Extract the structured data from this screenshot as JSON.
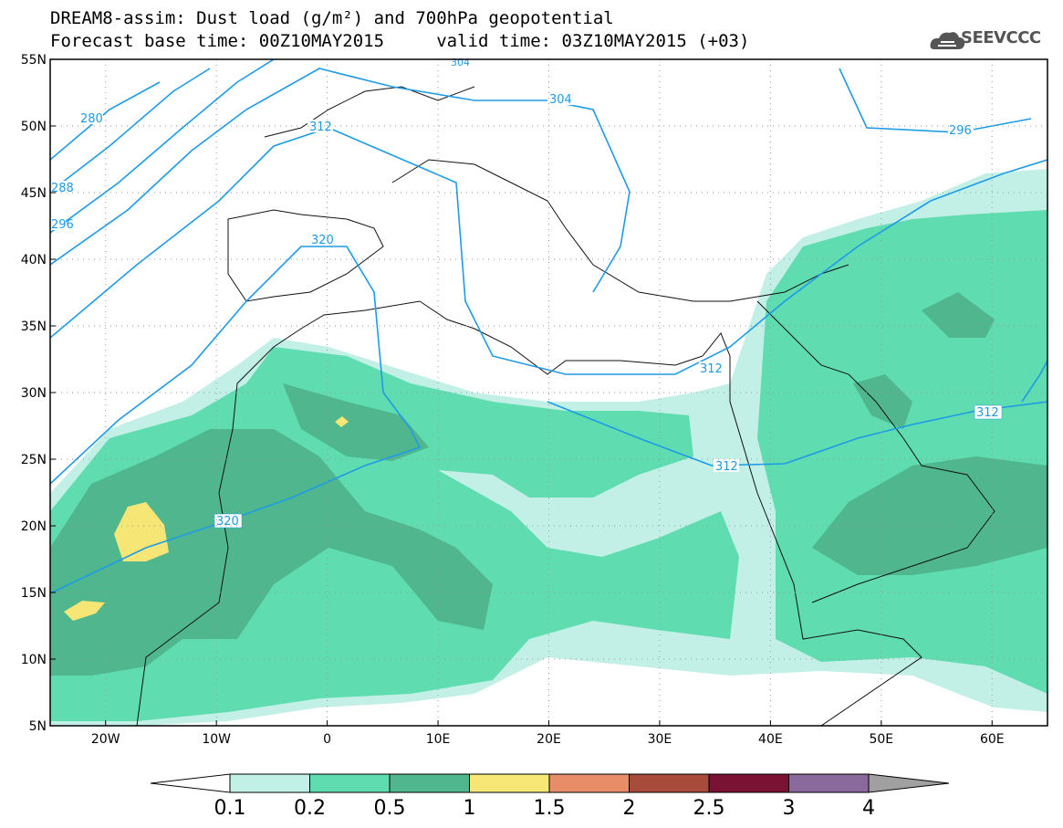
{
  "title": {
    "line1": "DREAM8-assim: Dust load (g/m²) and 700hPa geopotential",
    "line2": "Forecast base time: 00Z10MAY2015     valid time: 03Z10MAY2015 (+03)"
  },
  "logo": {
    "icon": "cloud-icon",
    "text": "SEEVCCC"
  },
  "map": {
    "lon_range": [
      -25,
      65
    ],
    "lat_range": [
      5,
      55
    ],
    "lat_ticks": [
      "5N",
      "10N",
      "15N",
      "20N",
      "25N",
      "30N",
      "35N",
      "40N",
      "45N",
      "50N",
      "55N"
    ],
    "lon_ticks": [
      "20W",
      "10W",
      "0",
      "10E",
      "20E",
      "30E",
      "40E",
      "50E",
      "60E"
    ],
    "contour_labels": [
      "280",
      "288",
      "296",
      "304",
      "312",
      "320",
      "320",
      "312",
      "312",
      "312",
      "304",
      "296",
      "312"
    ]
  },
  "colorbar": {
    "labels": [
      "0.1",
      "0.2",
      "0.5",
      "1",
      "1.5",
      "2",
      "2.5",
      "3",
      "4"
    ],
    "colors": [
      "#c2f0e6",
      "#5fdcb0",
      "#4fb68e",
      "#f5e676",
      "#e98d69",
      "#a84a3c",
      "#7a1233",
      "#8a6a9c"
    ],
    "left_tip_color": "#ffffff",
    "right_tip_color": "#a0a0a0"
  },
  "colors": {
    "contour": "#1e9be6"
  }
}
